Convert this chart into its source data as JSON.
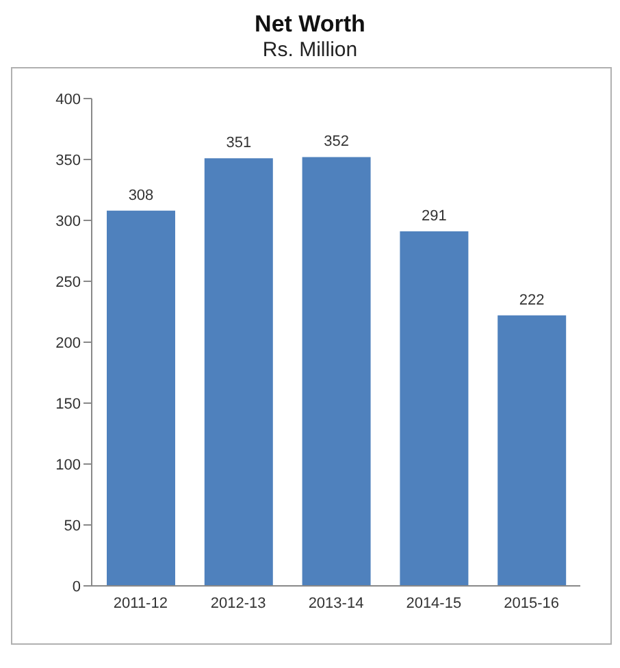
{
  "chart_data": {
    "type": "bar",
    "title": "Net Worth",
    "subtitle": "Rs. Million",
    "categories": [
      "2011-12",
      "2012-13",
      "2013-14",
      "2014-15",
      "2015-16"
    ],
    "values": [
      308,
      351,
      352,
      291,
      222
    ],
    "color": "#4f81bd",
    "ylim": [
      0,
      400
    ],
    "yticks": [
      0,
      50,
      100,
      150,
      200,
      250,
      300,
      350,
      400
    ],
    "data_labels": true
  }
}
